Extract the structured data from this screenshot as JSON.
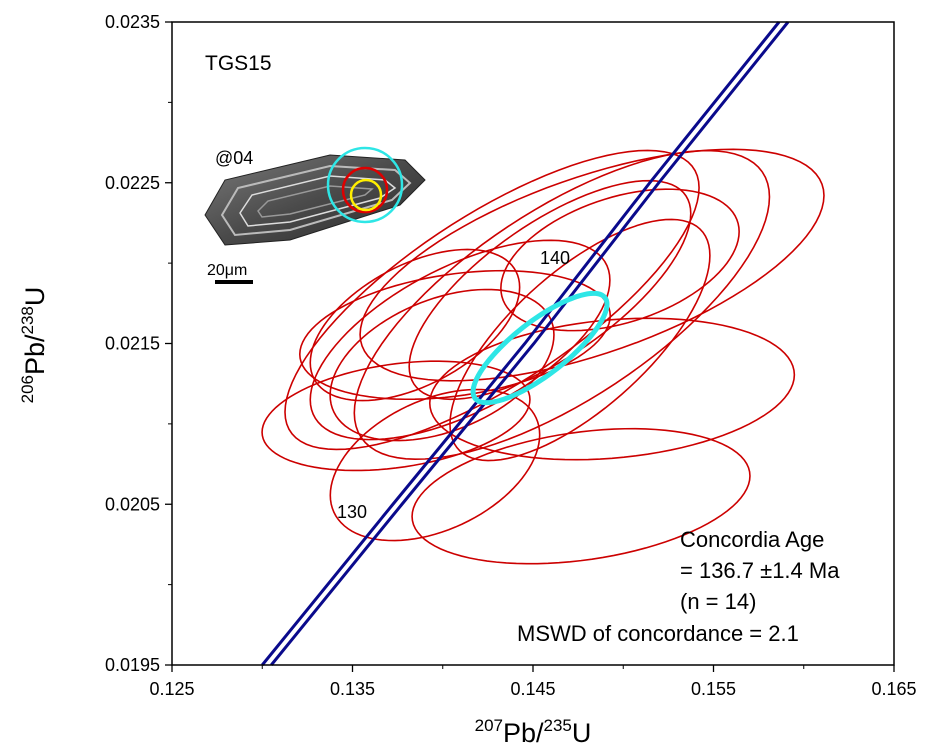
{
  "chart_data": {
    "type": "concordia",
    "xlim": [
      0.125,
      0.165
    ],
    "ylim": [
      0.0195,
      0.0235
    ],
    "xticks": [
      0.125,
      0.135,
      0.145,
      0.155,
      0.165
    ],
    "yticks": [
      0.0195,
      0.0205,
      0.0215,
      0.0225,
      0.0235
    ],
    "xminor": [
      0.13,
      0.14,
      0.15,
      0.16
    ],
    "yminor": [
      0.02,
      0.021,
      0.022,
      0.023
    ],
    "xlabel": [
      "207",
      "Pb/",
      "235",
      "U"
    ],
    "ylabel": [
      "206",
      "Pb/",
      "238",
      "U"
    ],
    "ellipses": {
      "color": "#cc0000",
      "x": [
        0.13741,
        0.14766,
        0.14938,
        0.14096,
        0.14273,
        0.14827,
        0.1466,
        0.14068,
        0.1476,
        0.13996,
        0.13846,
        0.14594,
        0.13957,
        0.14982
      ],
      "y": [
        0.02105,
        0.02055,
        0.021217,
        0.021522,
        0.021771,
        0.021988,
        0.02174,
        0.021553,
        0.021522,
        0.021366,
        0.021615,
        0.021833,
        0.020744,
        0.02202
      ],
      "x_err": [
        0.00742,
        0.00936,
        0.0101,
        0.0083,
        0.01147,
        0.01285,
        0.0115,
        0.0086,
        0.0072,
        0.0062,
        0.0058,
        0.0078,
        0.0058,
        0.0066
      ],
      "y_err": [
        0.00034,
        0.00042,
        0.00044,
        0.00062,
        0.00093,
        0.00072,
        0.00096,
        0.0004,
        0.00075,
        0.00047,
        0.00047,
        0.00068,
        0.00047,
        0.00044
      ],
      "rho": [
        0.3,
        0.3,
        0.2,
        0.6,
        0.75,
        0.6,
        0.7,
        0.3,
        0.7,
        0.4,
        0.5,
        0.7,
        0.4,
        0.4
      ]
    },
    "mean": {
      "color": "#2ee6e6",
      "x": 0.14539,
      "y": 0.021472,
      "x_err": 0.00371,
      "y_err": 0.00034,
      "rho": 0.8
    },
    "concordia": {
      "color": "#0a0a8c",
      "lines": [
        {
          "x": [
            0.13,
            0.13724,
            0.14455,
            0.15147,
            0.15863
          ],
          "y": [
            0.0195,
            0.0205,
            0.0215,
            0.0225,
            0.0235
          ]
        },
        {
          "x": [
            0.1305,
            0.13774,
            0.14505,
            0.15197,
            0.15913
          ],
          "y": [
            0.0195,
            0.0205,
            0.0215,
            0.0225,
            0.0235
          ]
        }
      ],
      "age_labels": [
        "140",
        "130"
      ]
    },
    "sample": "TGS15",
    "grain": "@04",
    "scale_bar": "20μm",
    "result": [
      "Concordia Age",
      "= 136.7 ±1.4 Ma",
      "(n = 14)",
      "MSWD of concordance = 2.1"
    ]
  }
}
